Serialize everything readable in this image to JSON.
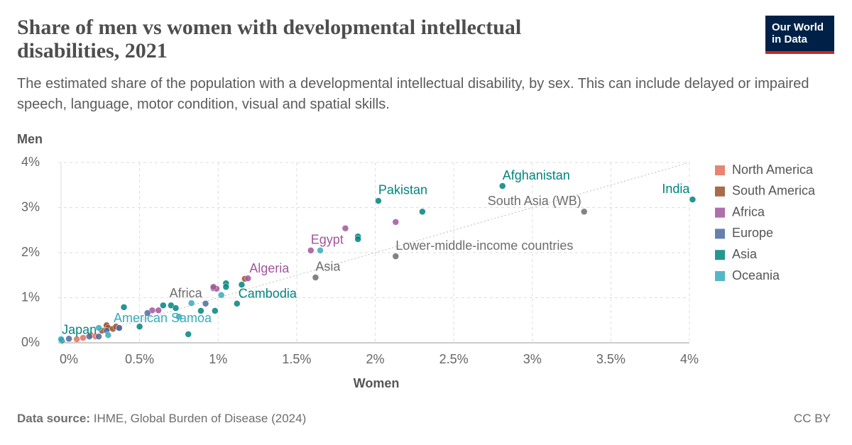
{
  "logo": "Our World in Data",
  "source_label": "Data source:",
  "source": "IHME, Global Burden of Disease (2024)",
  "license": "CC BY",
  "chart_data": {
    "type": "scatter",
    "title": "Share of men vs women with developmental intellectual disabilities, 2021",
    "subtitle": "The estimated share of the population with a developmental intellectual disability, by sex. This can include delayed or impaired speech, language, motor condition, visual and spatial skills.",
    "x_label": "Women",
    "y_label": "Men",
    "xlim": [
      0,
      4
    ],
    "ylim": [
      0,
      4
    ],
    "xticks": [
      {
        "value": 0,
        "label": "0%"
      },
      {
        "value": 0.5,
        "label": "0.5%"
      },
      {
        "value": 1,
        "label": "1%"
      },
      {
        "value": 1.5,
        "label": "1.5%"
      },
      {
        "value": 2,
        "label": "2%"
      },
      {
        "value": 2.5,
        "label": "2.5%"
      },
      {
        "value": 3,
        "label": "3%"
      },
      {
        "value": 3.5,
        "label": "3.5%"
      },
      {
        "value": 4,
        "label": "4%"
      }
    ],
    "yticks": [
      {
        "value": 0,
        "label": "0%"
      },
      {
        "value": 1,
        "label": "1%"
      },
      {
        "value": 2,
        "label": "2%"
      },
      {
        "value": 3,
        "label": "3%"
      },
      {
        "value": 4,
        "label": "4%"
      }
    ],
    "grid": true,
    "legend": "right",
    "series": [
      {
        "name": "North America",
        "color": "#e56e5a",
        "x": [
          0.14,
          0.1,
          0.29,
          0.19,
          0.22
        ],
        "values": [
          0.11,
          0.08,
          0.35,
          0.17,
          0.14
        ],
        "point_labels": [
          null,
          null,
          null,
          null,
          null
        ]
      },
      {
        "name": "South America",
        "color": "#9a5129",
        "x": [
          0.29,
          0.3,
          0.33,
          0.26,
          1.17,
          0.35
        ],
        "values": [
          0.39,
          0.33,
          0.31,
          0.27,
          1.42,
          0.36
        ],
        "point_labels": [
          null,
          null,
          null,
          null,
          null,
          null
        ]
      },
      {
        "name": "Africa",
        "color": "#a2559c",
        "x": [
          1.59,
          1.81,
          2.13,
          1.19,
          0.99,
          0.97,
          0.58,
          0.62,
          0.37
        ],
        "values": [
          2.05,
          2.54,
          2.68,
          1.43,
          1.2,
          1.24,
          0.72,
          0.72,
          0.33
        ],
        "point_labels": [
          "Egypt",
          null,
          null,
          "Algeria",
          null,
          null,
          null,
          null,
          null
        ]
      },
      {
        "name": "Europe",
        "color": "#4c6a9c",
        "x": [
          0.05,
          0.18,
          0.24,
          0.29,
          0.37,
          0.55,
          0.92
        ],
        "values": [
          0.09,
          0.14,
          0.14,
          0.27,
          0.33,
          0.66,
          0.87
        ],
        "point_labels": [
          null,
          null,
          null,
          null,
          null,
          null,
          null
        ]
      },
      {
        "name": "Asia",
        "color": "#00847e",
        "x": [
          4.02,
          2.81,
          2.02,
          2.3,
          1.89,
          1.89,
          1.12,
          1.15,
          1.05,
          1.05,
          0.98,
          0.89,
          0.65,
          0.7,
          0.5,
          0.4,
          0.81,
          0.005,
          0.73
        ],
        "values": [
          3.18,
          3.48,
          3.15,
          2.91,
          2.36,
          2.3,
          0.87,
          1.29,
          1.32,
          1.24,
          0.71,
          0.71,
          0.83,
          0.83,
          0.36,
          0.79,
          0.19,
          0.05,
          0.77
        ],
        "point_labels": [
          "India",
          "Afghanistan",
          "Pakistan",
          null,
          null,
          null,
          "Cambodia",
          null,
          null,
          null,
          null,
          null,
          null,
          null,
          null,
          null,
          null,
          "Japan",
          null
        ]
      },
      {
        "name": "Oceania",
        "color": "#38aaba",
        "x": [
          0.75,
          0.83,
          1.02,
          0.3,
          0.24,
          1.65,
          0.0
        ],
        "values": [
          0.58,
          0.88,
          1.06,
          0.17,
          0.33,
          2.05,
          0.08
        ],
        "point_labels": [
          "American Samoa",
          null,
          null,
          null,
          null,
          null,
          null
        ]
      }
    ],
    "aggregates": {
      "color": "#6d6d6d",
      "x": [
        3.33,
        2.13,
        1.62,
        0.97
      ],
      "values": [
        2.91,
        1.92,
        1.45,
        1.21
      ],
      "point_labels": [
        "South Asia (WB)",
        "Lower-middle-income countries",
        "Asia",
        "Africa"
      ]
    }
  }
}
